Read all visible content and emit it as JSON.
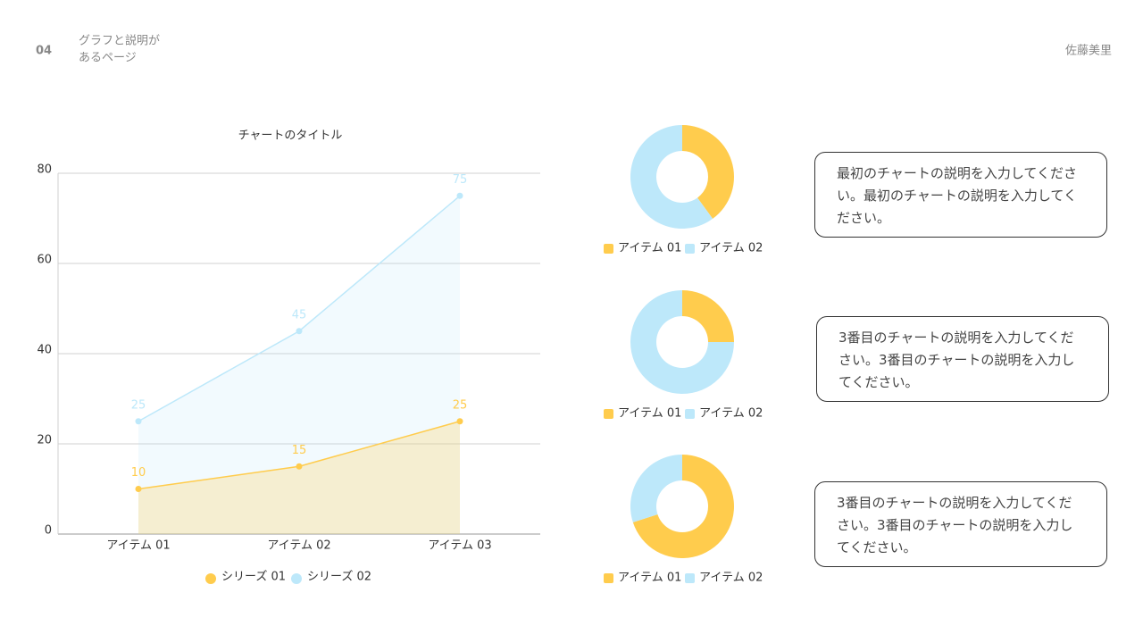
{
  "header": {
    "number": "04",
    "subtitle_lines": [
      "グラフと説明が",
      "あるページ"
    ],
    "author": "佐藤美里"
  },
  "chart_data": [
    {
      "type": "line",
      "title": "チャートのタイトル",
      "area": true,
      "grid": true,
      "categories": [
        "アイテム 01",
        "アイテム 02",
        "アイテム 03"
      ],
      "series": [
        {
          "name": "シリーズ 01",
          "color": "#ffcc4d",
          "values": [
            10,
            15,
            25
          ]
        },
        {
          "name": "シリーズ 02",
          "color": "#bde8fa",
          "values": [
            25,
            45,
            75
          ]
        }
      ],
      "ylim": [
        0,
        80
      ],
      "yticks": [
        0,
        20,
        40,
        60,
        80
      ]
    },
    {
      "type": "donut",
      "categories": [
        "アイテム 01",
        "アイテム 02"
      ],
      "values": [
        40,
        60
      ],
      "colors": [
        "#ffcc4d",
        "#bde8fa"
      ]
    },
    {
      "type": "donut",
      "categories": [
        "アイテム 01",
        "アイテム 02"
      ],
      "values": [
        25,
        75
      ],
      "colors": [
        "#ffcc4d",
        "#bde8fa"
      ]
    },
    {
      "type": "donut",
      "categories": [
        "アイテム 01",
        "アイテム 02"
      ],
      "values": [
        70,
        30
      ],
      "colors": [
        "#ffcc4d",
        "#bde8fa"
      ]
    }
  ],
  "descriptions": [
    "最初のチャートの説明を入力してください。最初のチャートの説明を入力してください。",
    "3番目のチャートの説明を入力してください。3番目のチャートの説明を入力してください。",
    "3番目のチャートの説明を入力してください。3番目のチャートの説明を入力してください。"
  ]
}
